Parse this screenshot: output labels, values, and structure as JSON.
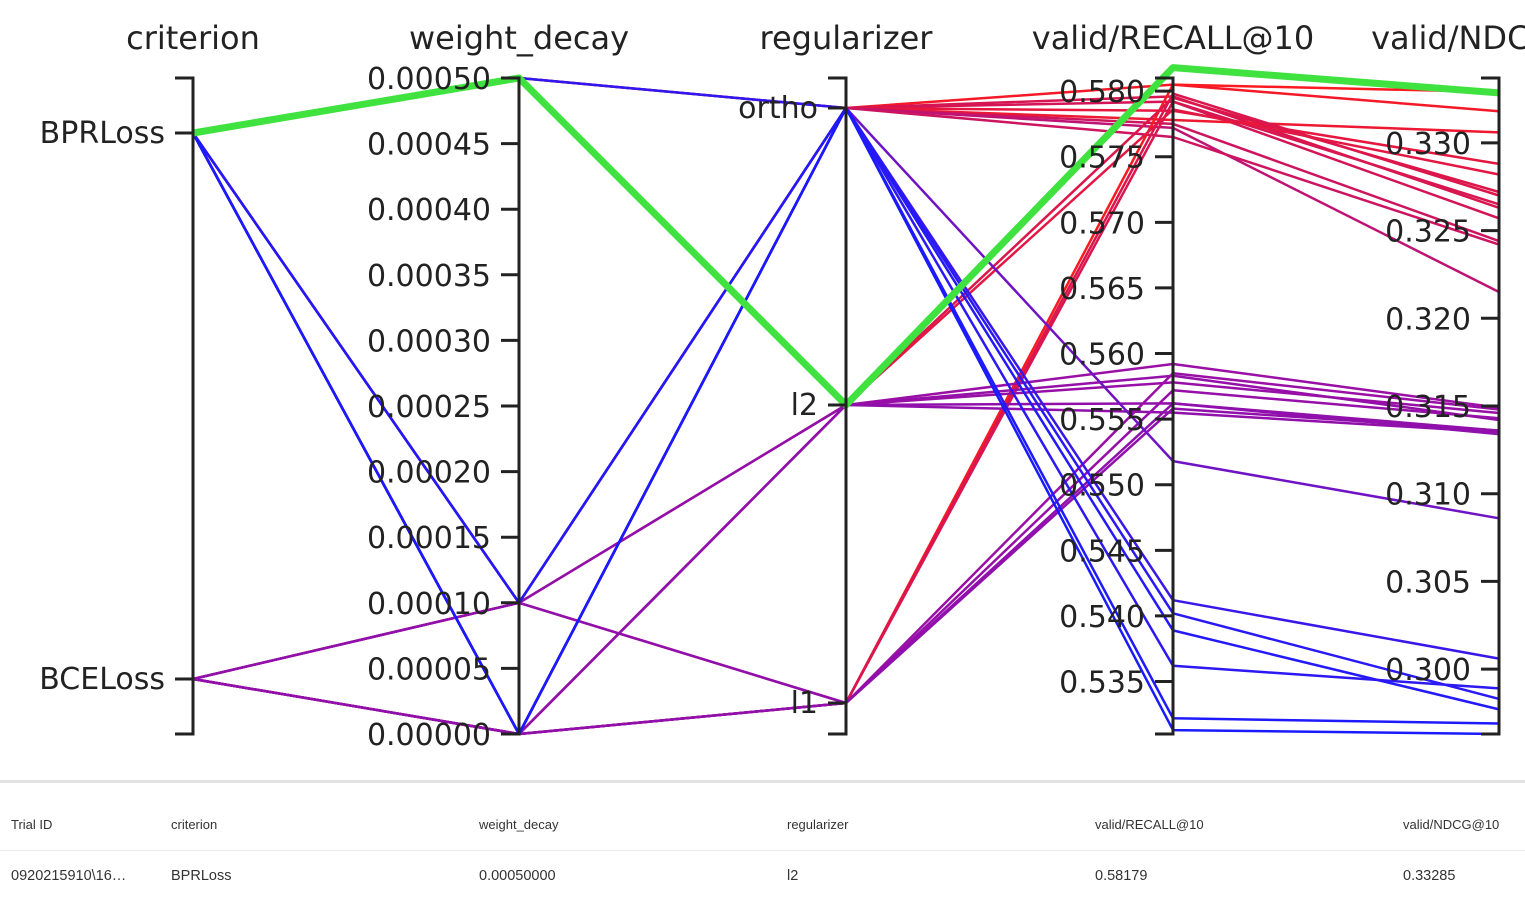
{
  "chart_data": {
    "type": "parallel_coordinates",
    "axes": [
      {
        "key": "criterion",
        "title": "criterion",
        "kind": "categorical",
        "categories": [
          "BPRLoss",
          "BCELoss"
        ]
      },
      {
        "key": "weight_decay",
        "title": "weight_decay",
        "kind": "numeric",
        "range": [
          0,
          0.0005
        ],
        "ticks": [
          "0.00000",
          "0.00005",
          "0.00010",
          "0.00015",
          "0.00020",
          "0.00025",
          "0.00030",
          "0.00035",
          "0.00040",
          "0.00045",
          "0.00050"
        ]
      },
      {
        "key": "regularizer",
        "title": "regularizer",
        "kind": "categorical",
        "categories": [
          "ortho",
          "l2",
          "l1"
        ]
      },
      {
        "key": "recall",
        "title": "valid/RECALL@10",
        "kind": "numeric",
        "range": [
          0.531,
          0.581
        ],
        "ticks": [
          "0.535",
          "0.540",
          "0.545",
          "0.550",
          "0.555",
          "0.560",
          "0.565",
          "0.570",
          "0.575",
          "0.580"
        ]
      },
      {
        "key": "ndcg",
        "title": "valid/NDCG@10",
        "kind": "numeric",
        "range": [
          0.2963,
          0.3337
        ],
        "ticks": [
          "0.300",
          "0.305",
          "0.310",
          "0.315",
          "0.320",
          "0.325",
          "0.330"
        ]
      }
    ],
    "colors": {
      "low": "#1a1aff",
      "mid": "#9b0fa5",
      "high": "#ff1a1a",
      "best": "#3fe23f"
    },
    "trials": [
      {
        "criterion": "BPRLoss",
        "weight_decay": 0.0005,
        "regularizer": "l2",
        "recall": 0.58179,
        "ndcg": 0.33285,
        "best": true
      },
      {
        "criterion": "BPRLoss",
        "weight_decay": 0.0005,
        "regularizer": "l2",
        "recall": 0.5818,
        "ndcg": 0.3328
      },
      {
        "criterion": "BPRLoss",
        "weight_decay": 0.0005,
        "regularizer": "ortho",
        "recall": 0.5805,
        "ndcg": 0.3318
      },
      {
        "criterion": "BPRLoss",
        "weight_decay": 0.0005,
        "regularizer": "ortho",
        "recall": 0.5796,
        "ndcg": 0.3263
      },
      {
        "criterion": "BPRLoss",
        "weight_decay": 0.0,
        "regularizer": "ortho",
        "recall": 0.5792,
        "ndcg": 0.3257
      },
      {
        "criterion": "BPRLoss",
        "weight_decay": 0.0,
        "regularizer": "ortho",
        "recall": 0.5785,
        "ndcg": 0.3288
      },
      {
        "criterion": "BPRLoss",
        "weight_decay": 0.0001,
        "regularizer": "ortho",
        "recall": 0.5778,
        "ndcg": 0.3306
      },
      {
        "criterion": "BPRLoss",
        "weight_decay": 0.0001,
        "regularizer": "ortho",
        "recall": 0.5775,
        "ndcg": 0.3244
      },
      {
        "criterion": "BPRLoss",
        "weight_decay": 0.0,
        "regularizer": "ortho",
        "recall": 0.5772,
        "ndcg": 0.3215
      },
      {
        "criterion": "BPRLoss",
        "weight_decay": 0.0001,
        "regularizer": "ortho",
        "recall": 0.5765,
        "ndcg": 0.3242
      },
      {
        "criterion": "BCELoss",
        "weight_decay": 0.0,
        "regularizer": "l1",
        "recall": 0.5805,
        "ndcg": 0.3329
      },
      {
        "criterion": "BCELoss",
        "weight_decay": 0.0001,
        "regularizer": "l1",
        "recall": 0.5798,
        "ndcg": 0.327
      },
      {
        "criterion": "BCELoss",
        "weight_decay": 0.0,
        "regularizer": "l1",
        "recall": 0.5792,
        "ndcg": 0.3265
      },
      {
        "criterion": "BCELoss",
        "weight_decay": 0.0,
        "regularizer": "l2",
        "recall": 0.5795,
        "ndcg": 0.3272
      },
      {
        "criterion": "BCELoss",
        "weight_decay": 0.0001,
        "regularizer": "l2",
        "recall": 0.5786,
        "ndcg": 0.3282
      },
      {
        "criterion": "BPRLoss",
        "weight_decay": 0.0005,
        "regularizer": "l2",
        "recall": 0.5592,
        "ndcg": 0.3149
      },
      {
        "criterion": "BPRLoss",
        "weight_decay": 0.0005,
        "regularizer": "l2",
        "recall": 0.5583,
        "ndcg": 0.3142
      },
      {
        "criterion": "BCELoss",
        "weight_decay": 0.0,
        "regularizer": "l2",
        "recall": 0.5578,
        "ndcg": 0.3146
      },
      {
        "criterion": "BCELoss",
        "weight_decay": 0.0,
        "regularizer": "l2",
        "recall": 0.5562,
        "ndcg": 0.3136
      },
      {
        "criterion": "BCELoss",
        "weight_decay": 0.0001,
        "regularizer": "l2",
        "recall": 0.5555,
        "ndcg": 0.3135
      },
      {
        "criterion": "BPRLoss",
        "weight_decay": 0.0,
        "regularizer": "l1",
        "recall": 0.5585,
        "ndcg": 0.3148
      },
      {
        "criterion": "BCELoss",
        "weight_decay": 0.0,
        "regularizer": "l1",
        "recall": 0.5572,
        "ndcg": 0.3143
      },
      {
        "criterion": "BCELoss",
        "weight_decay": 0.0001,
        "regularizer": "l1",
        "recall": 0.5562,
        "ndcg": 0.3134
      },
      {
        "criterion": "BCELoss",
        "weight_decay": 0.0,
        "regularizer": "l1",
        "recall": 0.5558,
        "ndcg": 0.3136
      },
      {
        "criterion": "BPRLoss",
        "weight_decay": 0.0001,
        "regularizer": "ortho",
        "recall": 0.5518,
        "ndcg": 0.3086
      },
      {
        "criterion": "BPRLoss",
        "weight_decay": 0.0,
        "regularizer": "ortho",
        "recall": 0.5412,
        "ndcg": 0.3006
      },
      {
        "criterion": "BPRLoss",
        "weight_decay": 0.0,
        "regularizer": "ortho",
        "recall": 0.5402,
        "ndcg": 0.2983
      },
      {
        "criterion": "BPRLoss",
        "weight_decay": 0.0,
        "regularizer": "ortho",
        "recall": 0.5389,
        "ndcg": 0.2977
      },
      {
        "criterion": "BPRLoss",
        "weight_decay": 0.0005,
        "regularizer": "ortho",
        "recall": 0.5362,
        "ndcg": 0.2989
      },
      {
        "criterion": "BPRLoss",
        "weight_decay": 0.0001,
        "regularizer": "ortho",
        "recall": 0.5322,
        "ndcg": 0.2969
      },
      {
        "criterion": "BPRLoss",
        "weight_decay": 0.0,
        "regularizer": "ortho",
        "recall": 0.5313,
        "ndcg": 0.2963
      }
    ]
  },
  "table": {
    "headers": [
      "Trial ID",
      "criterion",
      "weight_decay",
      "regularizer",
      "valid/RECALL@10",
      "valid/NDCG@10"
    ],
    "rows": [
      [
        "0920215910\\16…",
        "BPRLoss",
        "0.00050000",
        "l2",
        "0.58179",
        "0.33285"
      ]
    ]
  }
}
